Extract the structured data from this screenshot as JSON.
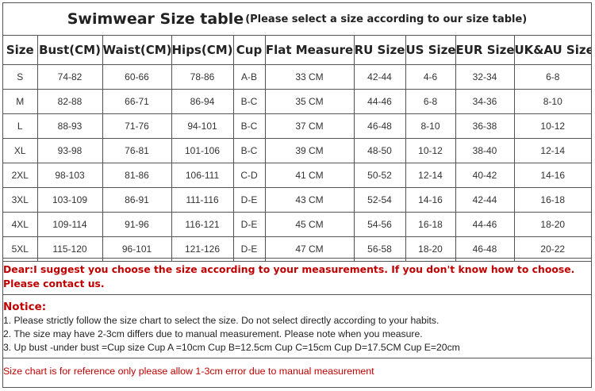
{
  "title": {
    "main": "Swimwear Size table",
    "sub": "(Please select a size according to our size table)"
  },
  "table": {
    "headers": [
      "Size",
      "Bust(CM)",
      "Waist(CM)",
      "Hips(CM)",
      "Cup",
      "Flat Measure",
      "RU Size",
      "US Size",
      "EUR Size",
      "UK&AU Size"
    ],
    "rows": [
      [
        "S",
        "74-82",
        "60-66",
        "78-86",
        "A-B",
        "33 CM",
        "42-44",
        "4-6",
        "32-34",
        "6-8"
      ],
      [
        "M",
        "82-88",
        "66-71",
        "86-94",
        "B-C",
        "35 CM",
        "44-46",
        "6-8",
        "34-36",
        "8-10"
      ],
      [
        "L",
        "88-93",
        "71-76",
        "94-101",
        "B-C",
        "37 CM",
        "46-48",
        "8-10",
        "36-38",
        "10-12"
      ],
      [
        "XL",
        "93-98",
        "76-81",
        "101-106",
        "B-C",
        "39 CM",
        "48-50",
        "10-12",
        "38-40",
        "12-14"
      ],
      [
        "2XL",
        "98-103",
        "81-86",
        "106-111",
        "C-D",
        "41 CM",
        "50-52",
        "12-14",
        "40-42",
        "14-16"
      ],
      [
        "3XL",
        "103-109",
        "86-91",
        "111-116",
        "D-E",
        "43 CM",
        "52-54",
        "14-16",
        "42-44",
        "16-18"
      ],
      [
        "4XL",
        "109-114",
        "91-96",
        "116-121",
        "D-E",
        "45 CM",
        "54-56",
        "16-18",
        "44-46",
        "18-20"
      ],
      [
        "5XL",
        "115-120",
        "96-101",
        "121-126",
        "D-E",
        "47 CM",
        "56-58",
        "18-20",
        "46-48",
        "20-22"
      ]
    ]
  },
  "dear_note": "Dear:I suggest you choose the size according to your measurements. If you don't know how to choose. Please contact us.",
  "notice": {
    "heading": "Notice:",
    "lines": [
      "1. Please strictly follow the size chart  to select the size. Do not select directly according to your habits.",
      "2. The size may have 2-3cm differs due to manual measurement. Please note when you measure.",
      "3. Up bust -under bust =Cup size  Cup A =10cm   Cup B=12.5cm   Cup C=15cm   Cup D=17.5CM   Cup E=20cm"
    ]
  },
  "reference_note": "Size chart is for reference only please allow 1-3cm error due to manual measurement",
  "colors": {
    "accent_red": "#c00000",
    "border": "#555555"
  }
}
